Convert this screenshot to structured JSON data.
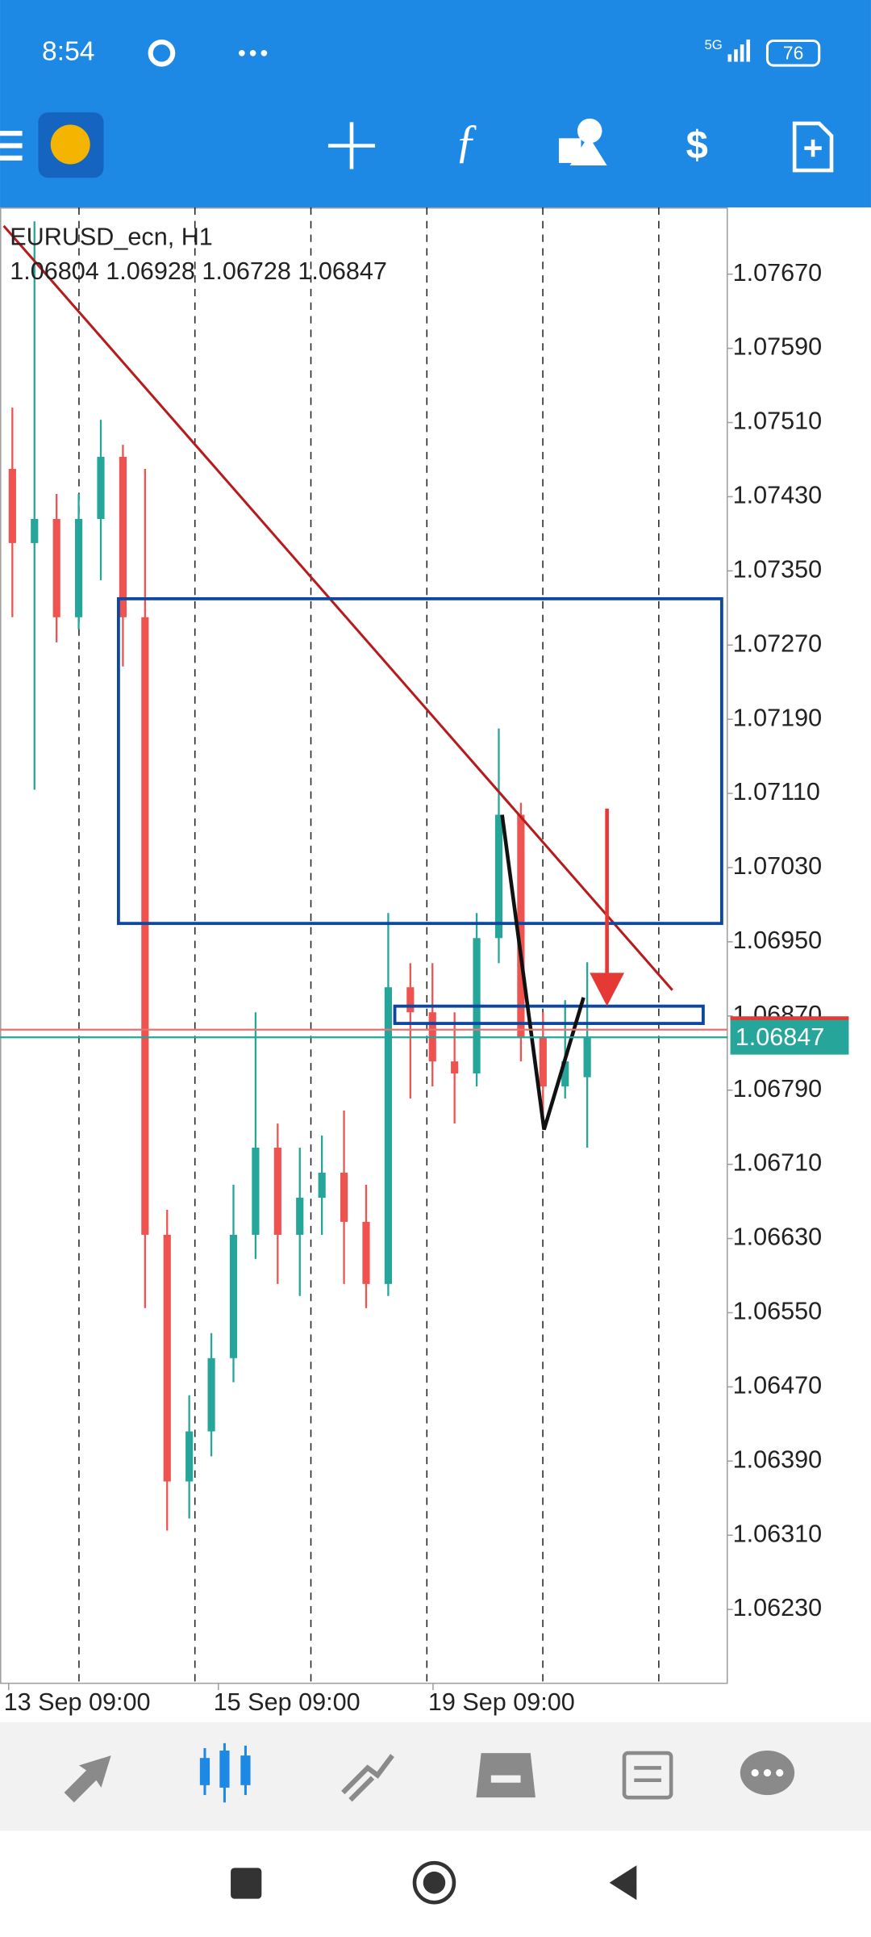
{
  "status_bar": {
    "time": "8:54",
    "network": "5G",
    "battery": "76"
  },
  "chart_data": {
    "type": "candlestick",
    "title": "EURUSD_ecn, H1",
    "subtitle": "1.06804 1.06928 1.06728 1.06847",
    "up_color": "#26a69a",
    "down_color": "#ef5350",
    "ylim": [
      1.06151,
      1.07742
    ],
    "yticks": [
      {
        "value": 1.0767,
        "label": "1.07670"
      },
      {
        "value": 1.0759,
        "label": "1.07590"
      },
      {
        "value": 1.0751,
        "label": "1.07510"
      },
      {
        "value": 1.0743,
        "label": "1.07430"
      },
      {
        "value": 1.0735,
        "label": "1.07350"
      },
      {
        "value": 1.0727,
        "label": "1.07270"
      },
      {
        "value": 1.0719,
        "label": "1.07190"
      },
      {
        "value": 1.0711,
        "label": "1.07110"
      },
      {
        "value": 1.0703,
        "label": "1.07030"
      },
      {
        "value": 1.0695,
        "label": "1.06950"
      },
      {
        "value": 1.0687,
        "label": "1.06870"
      },
      {
        "value": 1.0679,
        "label": "1.06790"
      },
      {
        "value": 1.0671,
        "label": "1.06710"
      },
      {
        "value": 1.0663,
        "label": "1.06630"
      },
      {
        "value": 1.0655,
        "label": "1.06550"
      },
      {
        "value": 1.0647,
        "label": "1.06470"
      },
      {
        "value": 1.0639,
        "label": "1.06390"
      },
      {
        "value": 1.0631,
        "label": "1.06310"
      },
      {
        "value": 1.0623,
        "label": "1.06230"
      }
    ],
    "current_price": {
      "value": 1.06847,
      "label": "1.06847"
    },
    "x_tick_labels": [
      "13 Sep 09:00",
      "15 Sep 09:00",
      "19 Sep 09:00"
    ],
    "candles": [
      {
        "open": 1.0746,
        "high": 1.07526,
        "low": 1.073,
        "close": 1.0738
      },
      {
        "open": 1.0738,
        "high": 1.07727,
        "low": 1.07114,
        "close": 1.07406
      },
      {
        "open": 1.07406,
        "high": 1.07433,
        "low": 1.07273,
        "close": 1.073
      },
      {
        "open": 1.073,
        "high": 1.07433,
        "low": 1.07287,
        "close": 1.07406
      },
      {
        "open": 1.07406,
        "high": 1.07513,
        "low": 1.0734,
        "close": 1.07473
      },
      {
        "open": 1.07473,
        "high": 1.07486,
        "low": 1.07247,
        "close": 1.073
      },
      {
        "open": 1.073,
        "high": 1.0746,
        "low": 1.06555,
        "close": 1.06634
      },
      {
        "open": 1.06634,
        "high": 1.06661,
        "low": 1.06315,
        "close": 1.06368
      },
      {
        "open": 1.06368,
        "high": 1.06461,
        "low": 1.06328,
        "close": 1.06422
      },
      {
        "open": 1.06422,
        "high": 1.06528,
        "low": 1.06395,
        "close": 1.06501
      },
      {
        "open": 1.06501,
        "high": 1.06688,
        "low": 1.06475,
        "close": 1.06634
      },
      {
        "open": 1.06634,
        "high": 1.06874,
        "low": 1.06608,
        "close": 1.06728
      },
      {
        "open": 1.06728,
        "high": 1.06754,
        "low": 1.06581,
        "close": 1.06634
      },
      {
        "open": 1.06634,
        "high": 1.06728,
        "low": 1.06568,
        "close": 1.06674
      },
      {
        "open": 1.06674,
        "high": 1.06741,
        "low": 1.06634,
        "close": 1.06701
      },
      {
        "open": 1.06701,
        "high": 1.06768,
        "low": 1.06581,
        "close": 1.06648
      },
      {
        "open": 1.06648,
        "high": 1.06688,
        "low": 1.06555,
        "close": 1.06581
      },
      {
        "open": 1.06581,
        "high": 1.06981,
        "low": 1.06568,
        "close": 1.06901
      },
      {
        "open": 1.06901,
        "high": 1.06927,
        "low": 1.06781,
        "close": 1.06874
      },
      {
        "open": 1.06874,
        "high": 1.06927,
        "low": 1.06794,
        "close": 1.06821
      },
      {
        "open": 1.06821,
        "high": 1.06874,
        "low": 1.06754,
        "close": 1.06808
      },
      {
        "open": 1.06808,
        "high": 1.06981,
        "low": 1.06794,
        "close": 1.06954
      },
      {
        "open": 1.06954,
        "high": 1.0718,
        "low": 1.06927,
        "close": 1.07087
      },
      {
        "open": 1.07087,
        "high": 1.071,
        "low": 1.06821,
        "close": 1.06847
      },
      {
        "open": 1.06847,
        "high": 1.06874,
        "low": 1.06754,
        "close": 1.06794
      },
      {
        "open": 1.06794,
        "high": 1.06887,
        "low": 1.06781,
        "close": 1.06821
      },
      {
        "open": 1.06804,
        "high": 1.06928,
        "low": 1.06728,
        "close": 1.06847
      }
    ]
  }
}
